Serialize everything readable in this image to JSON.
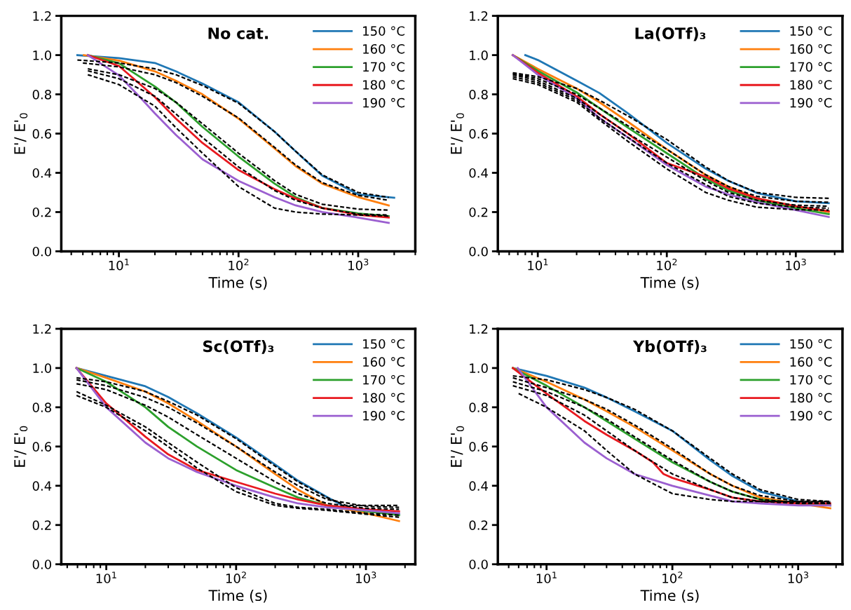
{
  "chart_data": [
    {
      "type": "line",
      "title": "No cat.",
      "xlabel": "Time (s)",
      "ylabel": "E'/ E'$_{0}$",
      "log": "x",
      "legend": "top right",
      "grid": false,
      "xlim": [
        3.3,
        3000
      ],
      "xticks": [
        {
          "value": 10,
          "label": "10$^{1}$"
        },
        {
          "value": 100,
          "label": "10$^{2}$"
        },
        {
          "value": 1000,
          "label": "10$^{3}$"
        }
      ],
      "ylim": [
        0,
        1.2
      ],
      "yticks": [
        {
          "value": 0,
          "label": "0.0"
        },
        {
          "value": 0.2,
          "label": "0.2"
        },
        {
          "value": 0.4,
          "label": "0.4"
        },
        {
          "value": 0.6,
          "label": "0.6"
        },
        {
          "value": 0.8,
          "label": "0.8"
        },
        {
          "value": 1.0,
          "label": "1.0"
        },
        {
          "value": 1.2,
          "label": "1.2"
        }
      ],
      "series": [
        {
          "name": "150 °C",
          "color": "#1f77b4",
          "x": [
            4.5,
            10,
            20,
            30,
            50,
            100,
            200,
            300,
            500,
            1000,
            2000
          ],
          "values": [
            1.0,
            0.985,
            0.96,
            0.917,
            0.855,
            0.76,
            0.61,
            0.51,
            0.386,
            0.29,
            0.273
          ]
        },
        {
          "name": "160 °C",
          "color": "#ff7f0e",
          "x": [
            5.1,
            10,
            20,
            30,
            50,
            100,
            200,
            300,
            500,
            1000,
            1800
          ],
          "values": [
            1.0,
            0.972,
            0.917,
            0.869,
            0.8,
            0.676,
            0.524,
            0.434,
            0.345,
            0.276,
            0.234
          ]
        },
        {
          "name": "170 °C",
          "color": "#2ca02c",
          "x": [
            5.5,
            10,
            20,
            30,
            50,
            100,
            200,
            300,
            500,
            1000,
            1800
          ],
          "values": [
            1.0,
            0.959,
            0.84,
            0.759,
            0.634,
            0.483,
            0.345,
            0.276,
            0.221,
            0.193,
            0.179
          ]
        },
        {
          "name": "180 °C",
          "color": "#e8191f",
          "x": [
            5.5,
            10,
            20,
            30,
            50,
            100,
            200,
            300,
            500,
            1000,
            1800
          ],
          "values": [
            1.0,
            0.945,
            0.786,
            0.676,
            0.552,
            0.414,
            0.317,
            0.269,
            0.221,
            0.186,
            0.172
          ]
        },
        {
          "name": "190 °C",
          "color": "#9b5fd0",
          "x": [
            5.5,
            10,
            15,
            20,
            30,
            50,
            100,
            200,
            300,
            500,
            1000,
            1800
          ],
          "values": [
            1.0,
            0.897,
            0.786,
            0.703,
            0.593,
            0.469,
            0.359,
            0.276,
            0.234,
            0.2,
            0.172,
            0.145
          ]
        },
        {
          "color": "#000000",
          "line_style": "dashed",
          "x": [
            4.5,
            10,
            20,
            30,
            50,
            100,
            200,
            300,
            500,
            1000,
            1800
          ],
          "values": [
            0.975,
            0.96,
            0.93,
            0.9,
            0.845,
            0.755,
            0.61,
            0.51,
            0.39,
            0.3,
            0.275
          ]
        },
        {
          "color": "#000000",
          "line_style": "dashed",
          "x": [
            5,
            10,
            20,
            30,
            50,
            100,
            200,
            300,
            500,
            1000,
            1800
          ],
          "values": [
            0.96,
            0.94,
            0.9,
            0.86,
            0.79,
            0.68,
            0.53,
            0.44,
            0.35,
            0.285,
            0.26
          ]
        },
        {
          "color": "#000000",
          "line_style": "dashed",
          "x": [
            5.5,
            10,
            20,
            30,
            50,
            100,
            200,
            300,
            500,
            1000,
            1800
          ],
          "values": [
            0.93,
            0.9,
            0.83,
            0.76,
            0.65,
            0.5,
            0.36,
            0.29,
            0.24,
            0.215,
            0.21
          ]
        },
        {
          "color": "#000000",
          "line_style": "dashed",
          "x": [
            5.5,
            10,
            20,
            30,
            50,
            100,
            200,
            300,
            500,
            1000,
            1800
          ],
          "values": [
            0.92,
            0.88,
            0.79,
            0.7,
            0.58,
            0.43,
            0.31,
            0.26,
            0.22,
            0.19,
            0.185
          ]
        },
        {
          "color": "#000000",
          "line_style": "dashed",
          "x": [
            5.5,
            10,
            20,
            30,
            50,
            100,
            200,
            300,
            500,
            1000,
            1800
          ],
          "values": [
            0.9,
            0.85,
            0.74,
            0.63,
            0.5,
            0.33,
            0.22,
            0.2,
            0.19,
            0.185,
            0.18
          ]
        }
      ]
    },
    {
      "type": "line",
      "title": "La(OTf)₃",
      "xlabel": "Time (s)",
      "ylabel": "E'/ E'$_{0}$",
      "log": "x",
      "legend": "top right",
      "grid": false,
      "xlim": [
        4.9,
        2300
      ],
      "xticks": [
        {
          "value": 10,
          "label": "10$^{1}$"
        },
        {
          "value": 100,
          "label": "10$^{2}$"
        },
        {
          "value": 1000,
          "label": "10$^{3}$"
        }
      ],
      "ylim": [
        0,
        1.2
      ],
      "yticks": [
        {
          "value": 0,
          "label": "0.0"
        },
        {
          "value": 0.2,
          "label": "0.2"
        },
        {
          "value": 0.4,
          "label": "0.4"
        },
        {
          "value": 0.6,
          "label": "0.6"
        },
        {
          "value": 0.8,
          "label": "0.8"
        },
        {
          "value": 1.0,
          "label": "1.0"
        },
        {
          "value": 1.2,
          "label": "1.2"
        }
      ],
      "series": [
        {
          "name": "150 °C",
          "color": "#1f77b4",
          "x": [
            8,
            10,
            20,
            30,
            50,
            100,
            200,
            300,
            500,
            1000,
            1800
          ],
          "values": [
            1.0,
            0.975,
            0.87,
            0.807,
            0.703,
            0.552,
            0.421,
            0.359,
            0.297,
            0.255,
            0.245
          ]
        },
        {
          "name": "160 °C",
          "color": "#ff7f0e",
          "x": [
            6.4,
            10,
            20,
            30,
            50,
            100,
            200,
            300,
            500,
            1000,
            1800
          ],
          "values": [
            1.0,
            0.93,
            0.83,
            0.76,
            0.66,
            0.52,
            0.39,
            0.33,
            0.27,
            0.23,
            0.2
          ]
        },
        {
          "name": "170 °C",
          "color": "#2ca02c",
          "x": [
            6.4,
            10,
            20,
            30,
            50,
            100,
            200,
            300,
            500,
            1000,
            1800
          ],
          "values": [
            1.0,
            0.92,
            0.81,
            0.73,
            0.63,
            0.5,
            0.37,
            0.31,
            0.26,
            0.22,
            0.19
          ]
        },
        {
          "name": "180 °C",
          "color": "#e8191f",
          "x": [
            6.4,
            10,
            20,
            30,
            50,
            100,
            200,
            300,
            500,
            1000,
            1800
          ],
          "values": [
            1.0,
            0.91,
            0.79,
            0.7,
            0.6,
            0.45,
            0.38,
            0.32,
            0.27,
            0.23,
            0.205
          ]
        },
        {
          "name": "190 °C",
          "color": "#9b5fd0",
          "x": [
            6.4,
            10,
            20,
            30,
            50,
            100,
            200,
            300,
            500,
            1000,
            1800
          ],
          "values": [
            1.0,
            0.9,
            0.78,
            0.68,
            0.58,
            0.44,
            0.33,
            0.29,
            0.25,
            0.21,
            0.175
          ]
        },
        {
          "color": "#000000",
          "line_style": "dashed",
          "x": [
            6.4,
            10,
            20,
            30,
            50,
            100,
            200,
            300,
            500,
            1000,
            1800
          ],
          "values": [
            0.91,
            0.89,
            0.83,
            0.77,
            0.69,
            0.57,
            0.43,
            0.36,
            0.3,
            0.275,
            0.27
          ]
        },
        {
          "color": "#000000",
          "line_style": "dashed",
          "x": [
            6.4,
            10,
            20,
            30,
            50,
            100,
            200,
            300,
            500,
            1000,
            1800
          ],
          "values": [
            0.905,
            0.88,
            0.8,
            0.73,
            0.64,
            0.52,
            0.39,
            0.33,
            0.28,
            0.255,
            0.25
          ]
        },
        {
          "color": "#000000",
          "line_style": "dashed",
          "x": [
            6.4,
            10,
            20,
            30,
            50,
            100,
            200,
            300,
            500,
            1000,
            1800
          ],
          "values": [
            0.9,
            0.87,
            0.78,
            0.7,
            0.6,
            0.48,
            0.36,
            0.3,
            0.26,
            0.235,
            0.23
          ]
        },
        {
          "color": "#000000",
          "line_style": "dashed",
          "x": [
            6.4,
            10,
            20,
            30,
            50,
            100,
            200,
            300,
            500,
            1000,
            1800
          ],
          "values": [
            0.89,
            0.86,
            0.77,
            0.68,
            0.58,
            0.45,
            0.34,
            0.28,
            0.245,
            0.225,
            0.22
          ]
        },
        {
          "color": "#000000",
          "line_style": "dashed",
          "x": [
            6.4,
            10,
            20,
            30,
            50,
            100,
            200,
            300,
            500,
            1000,
            1800
          ],
          "values": [
            0.88,
            0.85,
            0.76,
            0.67,
            0.56,
            0.42,
            0.3,
            0.26,
            0.225,
            0.212,
            0.21
          ]
        }
      ]
    },
    {
      "type": "line",
      "title": "Sc(OTf)₃",
      "xlabel": "Time (s)",
      "ylabel": "E'/ E'$_{0}$",
      "log": "x",
      "legend": "top right",
      "grid": false,
      "xlim": [
        4.5,
        2400
      ],
      "xticks": [
        {
          "value": 10,
          "label": "10$^{1}$"
        },
        {
          "value": 100,
          "label": "10$^{2}$"
        },
        {
          "value": 1000,
          "label": "10$^{3}$"
        }
      ],
      "ylim": [
        0,
        1.2
      ],
      "yticks": [
        {
          "value": 0,
          "label": "0.0"
        },
        {
          "value": 0.2,
          "label": "0.2"
        },
        {
          "value": 0.4,
          "label": "0.4"
        },
        {
          "value": 0.6,
          "label": "0.6"
        },
        {
          "value": 0.8,
          "label": "0.8"
        },
        {
          "value": 1.0,
          "label": "1.0"
        },
        {
          "value": 1.2,
          "label": "1.2"
        }
      ],
      "series": [
        {
          "name": "150 °C",
          "color": "#1f77b4",
          "x": [
            5.9,
            10,
            20,
            30,
            50,
            100,
            200,
            300,
            500,
            700,
            1000,
            1800
          ],
          "values": [
            1.0,
            0.96,
            0.907,
            0.852,
            0.769,
            0.646,
            0.508,
            0.426,
            0.343,
            0.29,
            0.275,
            0.254
          ]
        },
        {
          "name": "160 °C",
          "color": "#ff7f0e",
          "x": [
            5.9,
            10,
            20,
            30,
            50,
            100,
            200,
            300,
            500,
            1000,
            1800
          ],
          "values": [
            1.0,
            0.95,
            0.88,
            0.82,
            0.73,
            0.6,
            0.46,
            0.38,
            0.3,
            0.26,
            0.22
          ]
        },
        {
          "name": "170 °C",
          "color": "#2ca02c",
          "x": [
            5.9,
            10,
            20,
            30,
            50,
            100,
            200,
            300,
            500,
            1000,
            1800
          ],
          "values": [
            1.0,
            0.93,
            0.8,
            0.7,
            0.6,
            0.48,
            0.39,
            0.34,
            0.3,
            0.27,
            0.25
          ]
        },
        {
          "name": "180 °C",
          "color": "#e8191f",
          "x": [
            5.9,
            10,
            20,
            30,
            50,
            100,
            200,
            300,
            500,
            1000,
            1800
          ],
          "values": [
            1.0,
            0.82,
            0.65,
            0.56,
            0.48,
            0.42,
            0.36,
            0.33,
            0.3,
            0.28,
            0.27
          ]
        },
        {
          "name": "190 °C",
          "color": "#9b5fd0",
          "x": [
            5.9,
            10,
            20,
            30,
            50,
            100,
            200,
            300,
            500,
            1000,
            1800
          ],
          "values": [
            1.0,
            0.8,
            0.62,
            0.54,
            0.47,
            0.4,
            0.34,
            0.31,
            0.29,
            0.275,
            0.26
          ]
        },
        {
          "color": "#000000",
          "line_style": "dashed",
          "x": [
            5.9,
            10,
            20,
            30,
            50,
            100,
            200,
            300,
            500,
            700,
            1000,
            1800
          ],
          "values": [
            0.95,
            0.93,
            0.88,
            0.83,
            0.76,
            0.64,
            0.5,
            0.42,
            0.34,
            0.3,
            0.3,
            0.3
          ]
        },
        {
          "color": "#000000",
          "line_style": "dashed",
          "x": [
            5.9,
            10,
            20,
            30,
            50,
            100,
            200,
            300,
            500,
            1000,
            1800
          ],
          "values": [
            0.94,
            0.91,
            0.85,
            0.8,
            0.72,
            0.6,
            0.47,
            0.4,
            0.33,
            0.295,
            0.29
          ]
        },
        {
          "color": "#000000",
          "line_style": "dashed",
          "x": [
            5.9,
            10,
            20,
            30,
            50,
            100,
            200,
            300,
            500,
            1000,
            1800
          ],
          "values": [
            0.92,
            0.89,
            0.81,
            0.75,
            0.66,
            0.54,
            0.42,
            0.36,
            0.31,
            0.285,
            0.28
          ]
        },
        {
          "color": "#000000",
          "line_style": "dashed",
          "x": [
            5.9,
            10,
            20,
            30,
            50,
            100,
            200,
            300,
            500,
            1000,
            1800
          ],
          "values": [
            0.88,
            0.81,
            0.7,
            0.62,
            0.52,
            0.39,
            0.31,
            0.29,
            0.28,
            0.26,
            0.25
          ]
        },
        {
          "color": "#000000",
          "line_style": "dashed",
          "x": [
            5.9,
            10,
            20,
            30,
            50,
            100,
            200,
            300,
            500,
            1000,
            1800
          ],
          "values": [
            0.86,
            0.8,
            0.68,
            0.6,
            0.49,
            0.37,
            0.3,
            0.285,
            0.275,
            0.255,
            0.24
          ]
        }
      ]
    },
    {
      "type": "line",
      "title": "Yb(OTf)₃",
      "xlabel": "Time (s)",
      "ylabel": "E'/ E'$_{0}$",
      "log": "x",
      "legend": "top right",
      "grid": false,
      "xlim": [
        4.1,
        2250
      ],
      "xticks": [
        {
          "value": 10,
          "label": "10$^{1}$"
        },
        {
          "value": 100,
          "label": "10$^{2}$"
        },
        {
          "value": 1000,
          "label": "10$^{3}$"
        }
      ],
      "ylim": [
        0,
        1.2
      ],
      "yticks": [
        {
          "value": 0,
          "label": "0.0"
        },
        {
          "value": 0.2,
          "label": "0.2"
        },
        {
          "value": 0.4,
          "label": "0.4"
        },
        {
          "value": 0.6,
          "label": "0.6"
        },
        {
          "value": 0.8,
          "label": "0.8"
        },
        {
          "value": 1.0,
          "label": "1.0"
        },
        {
          "value": 1.2,
          "label": "1.2"
        }
      ],
      "series": [
        {
          "name": "150 °C",
          "color": "#1f77b4",
          "x": [
            5.4,
            10,
            20,
            30,
            50,
            100,
            200,
            300,
            500,
            1000,
            1800
          ],
          "values": [
            1.0,
            0.96,
            0.9,
            0.85,
            0.78,
            0.68,
            0.53,
            0.45,
            0.37,
            0.32,
            0.3
          ]
        },
        {
          "name": "160 °C",
          "color": "#ff7f0e",
          "x": [
            5.4,
            10,
            20,
            30,
            50,
            100,
            200,
            300,
            500,
            1000,
            1800
          ],
          "values": [
            1.0,
            0.93,
            0.84,
            0.78,
            0.7,
            0.58,
            0.46,
            0.4,
            0.34,
            0.31,
            0.285
          ]
        },
        {
          "name": "170 °C",
          "color": "#2ca02c",
          "x": [
            5.4,
            10,
            20,
            30,
            50,
            100,
            200,
            300,
            500,
            1000,
            1800
          ],
          "values": [
            1.0,
            0.91,
            0.8,
            0.73,
            0.64,
            0.52,
            0.42,
            0.37,
            0.33,
            0.31,
            0.3
          ]
        },
        {
          "name": "180 °C",
          "color": "#e8191f",
          "x": [
            5.4,
            10,
            20,
            30,
            50,
            70,
            85,
            100,
            200,
            300,
            500,
            1000,
            1800
          ],
          "values": [
            1.0,
            0.87,
            0.73,
            0.66,
            0.58,
            0.52,
            0.46,
            0.44,
            0.38,
            0.34,
            0.32,
            0.31,
            0.31
          ]
        },
        {
          "name": "190 °C",
          "color": "#9b5fd0",
          "x": [
            5.9,
            10,
            20,
            30,
            50,
            100,
            200,
            300,
            500,
            1000,
            1800
          ],
          "values": [
            1.0,
            0.8,
            0.62,
            0.54,
            0.46,
            0.4,
            0.35,
            0.32,
            0.31,
            0.3,
            0.3
          ]
        },
        {
          "color": "#000000",
          "line_style": "dashed",
          "x": [
            5.4,
            10,
            20,
            30,
            50,
            100,
            200,
            300,
            500,
            1000,
            1800
          ],
          "values": [
            0.96,
            0.94,
            0.89,
            0.85,
            0.79,
            0.68,
            0.54,
            0.46,
            0.38,
            0.33,
            0.32
          ]
        },
        {
          "color": "#000000",
          "line_style": "dashed",
          "x": [
            5.4,
            10,
            20,
            30,
            50,
            100,
            200,
            300,
            500,
            1000,
            1800
          ],
          "values": [
            0.95,
            0.9,
            0.84,
            0.79,
            0.71,
            0.59,
            0.46,
            0.4,
            0.35,
            0.32,
            0.315
          ]
        },
        {
          "color": "#000000",
          "line_style": "dashed",
          "x": [
            5.4,
            10,
            20,
            30,
            50,
            100,
            200,
            300,
            500,
            1000,
            1800
          ],
          "values": [
            0.93,
            0.88,
            0.8,
            0.74,
            0.65,
            0.53,
            0.42,
            0.37,
            0.33,
            0.315,
            0.31
          ]
        },
        {
          "color": "#000000",
          "line_style": "dashed",
          "x": [
            5.4,
            10,
            20,
            30,
            50,
            100,
            200,
            300,
            500,
            1000,
            1800
          ],
          "values": [
            0.91,
            0.86,
            0.76,
            0.68,
            0.58,
            0.46,
            0.38,
            0.34,
            0.32,
            0.31,
            0.31
          ]
        },
        {
          "color": "#000000",
          "line_style": "dashed",
          "x": [
            6,
            10,
            20,
            30,
            50,
            100,
            200,
            300,
            500,
            1000,
            1800
          ],
          "values": [
            0.87,
            0.8,
            0.68,
            0.58,
            0.46,
            0.36,
            0.33,
            0.32,
            0.32,
            0.32,
            0.32
          ]
        }
      ]
    }
  ]
}
